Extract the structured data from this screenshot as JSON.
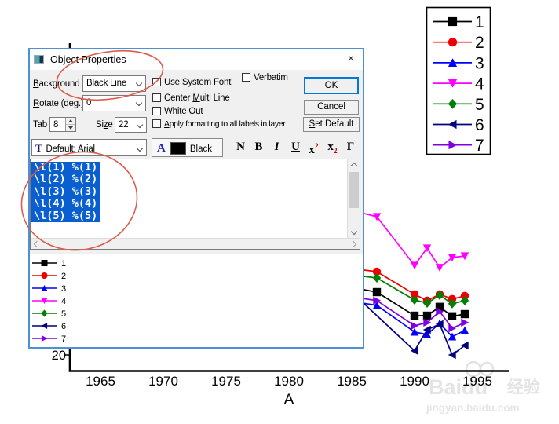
{
  "colors": {
    "selection_blue": "#0a5fd0",
    "dialog_border_blue": "#4e8fd5",
    "ok_default_border": "#0078d7",
    "annotation_red": "#dd5c4c",
    "watermark_gray": "#e4e4e4"
  },
  "dialog": {
    "title": "Object Properties",
    "close_glyph": "×",
    "background_label": {
      "pre": "",
      "key": "B",
      "post": "ackground"
    },
    "background_value": "Black Line",
    "rotate_label": {
      "pre": "",
      "key": "R",
      "post": "otate (deg.)"
    },
    "rotate_value": "0",
    "tab_label": "Tab",
    "tab_value": "8",
    "size_label": {
      "pre": "Si",
      "key": "z",
      "post": "e"
    },
    "size_value": "22",
    "font_value": "Default: Arial",
    "font_icon_glyph": "T",
    "color_glyph": "A",
    "color_value": "Black",
    "checkboxes": {
      "use_system_font": {
        "pre": "",
        "key": "U",
        "post": "se System Font",
        "checked": false
      },
      "verbatim": {
        "pre": "Verbatim",
        "key": "",
        "post": "",
        "checked": false
      },
      "center_multi_line": {
        "pre": "Center ",
        "key": "M",
        "post": "ulti Line",
        "checked": false
      },
      "white_out": {
        "pre": "",
        "key": "W",
        "post": "hite Out",
        "checked": false
      },
      "apply_formatting": {
        "pre": "",
        "key": "A",
        "post": "pply formatting to all labels in layer",
        "checked": false
      }
    },
    "buttons": {
      "ok": "OK",
      "cancel": "Cancel",
      "set_default": {
        "pre": "",
        "key": "S",
        "post": "et Default"
      }
    },
    "format_buttons": [
      {
        "base": "N"
      },
      {
        "base": "B"
      },
      {
        "base": "I"
      },
      {
        "base": "U"
      },
      {
        "base": "x",
        "sup": "2"
      },
      {
        "base": "x",
        "sub": "2"
      },
      {
        "base": "Γ"
      }
    ],
    "textarea_lines": [
      "\\l(1) %(1)",
      "\\l(2) %(2)",
      "\\l(3) %(3)",
      "\\l(4) %(4)",
      "\\l(5) %(5)"
    ]
  },
  "chart_data": {
    "type": "line",
    "xlabel": "A",
    "x_ticks": [
      1965,
      1970,
      1975,
      1980,
      1985,
      1990,
      1995
    ],
    "y_tick_labels": [
      "20"
    ],
    "legend_position": "top-right",
    "legend_labels": [
      "1",
      "2",
      "3",
      "4",
      "5",
      "6",
      "7"
    ],
    "series": [
      {
        "name": "1",
        "color": "#000000",
        "marker": "square",
        "points": [
          [
            1985,
            41.5
          ],
          [
            1987,
            40
          ],
          [
            1990,
            32.5
          ],
          [
            1991,
            32.5
          ],
          [
            1992,
            35.3
          ],
          [
            1993,
            32.3
          ],
          [
            1994,
            33
          ]
        ]
      },
      {
        "name": "2",
        "color": "#ee0000",
        "marker": "circle",
        "points": [
          [
            1985,
            47.5
          ],
          [
            1987,
            46.5
          ],
          [
            1990,
            39.3
          ],
          [
            1991,
            37.3
          ],
          [
            1992,
            39.3
          ],
          [
            1993,
            37.8
          ],
          [
            1994,
            38.8
          ]
        ]
      },
      {
        "name": "3",
        "color": "#0000ff",
        "marker": "triangle-up",
        "points": [
          [
            1985,
            37
          ],
          [
            1987,
            35.8
          ],
          [
            1990,
            27.3
          ],
          [
            1991,
            26.5
          ],
          [
            1992,
            30
          ],
          [
            1993,
            25.8
          ],
          [
            1994,
            27.8
          ]
        ]
      },
      {
        "name": "4",
        "color": "#ff00ff",
        "marker": "triangle-down",
        "points": [
          [
            1985,
            66
          ],
          [
            1987,
            64
          ],
          [
            1990,
            48.5
          ],
          [
            1991,
            54
          ],
          [
            1992,
            47.8
          ],
          [
            1993,
            51
          ],
          [
            1994,
            51.5
          ]
        ]
      },
      {
        "name": "5",
        "color": "#008000",
        "marker": "diamond",
        "points": [
          [
            1985,
            45.5
          ],
          [
            1987,
            44.5
          ],
          [
            1990,
            37.5
          ],
          [
            1991,
            36.5
          ],
          [
            1992,
            39
          ],
          [
            1993,
            36.3
          ],
          [
            1994,
            37.3
          ]
        ]
      },
      {
        "name": "6",
        "color": "#000080",
        "marker": "triangle-left",
        "points": [
          [
            1985,
            40
          ],
          [
            1990,
            21.3
          ],
          [
            1991,
            28
          ],
          [
            1992,
            29.8
          ],
          [
            1993,
            20
          ],
          [
            1994,
            23
          ]
        ]
      },
      {
        "name": "7",
        "color": "#7f00e0",
        "marker": "triangle-right",
        "points": [
          [
            1985,
            38.5
          ],
          [
            1987,
            37.3
          ],
          [
            1990,
            29.3
          ],
          [
            1991,
            30.3
          ],
          [
            1992,
            33.8
          ],
          [
            1993,
            28.5
          ],
          [
            1994,
            30.3
          ]
        ]
      }
    ]
  },
  "watermark": {
    "brand": "Baidu",
    "suffix": "经验",
    "url": "jingyan.baidu.com"
  }
}
